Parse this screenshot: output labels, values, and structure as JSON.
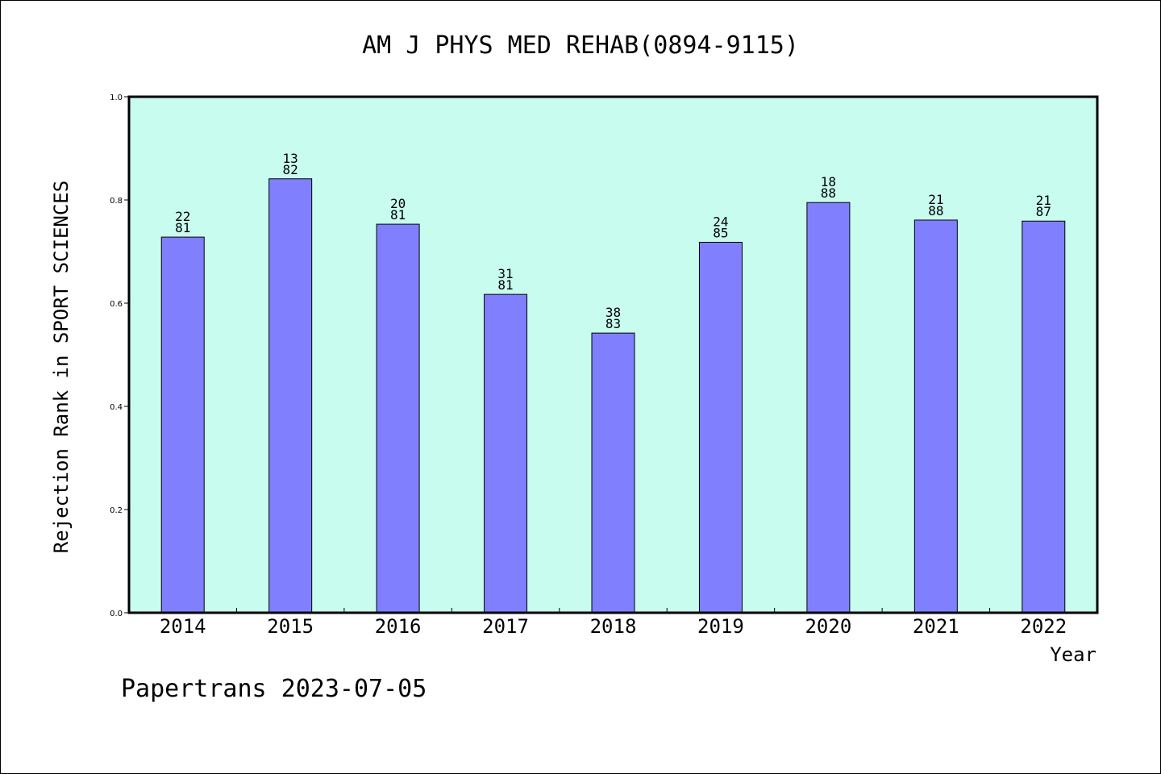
{
  "chart_data": {
    "type": "bar",
    "title": "AM J PHYS MED REHAB(0894-9115)",
    "xlabel": "Year",
    "ylabel": "Rejection Rank in SPORT SCIENCES",
    "categories": [
      "2014",
      "2015",
      "2016",
      "2017",
      "2018",
      "2019",
      "2020",
      "2021",
      "2022"
    ],
    "values": [
      0.728,
      0.841,
      0.753,
      0.617,
      0.542,
      0.718,
      0.795,
      0.761,
      0.759
    ],
    "rank": [
      "22",
      "13",
      "20",
      "31",
      "38",
      "24",
      "18",
      "21",
      "21"
    ],
    "total": [
      "81",
      "82",
      "81",
      "81",
      "83",
      "85",
      "88",
      "88",
      "87"
    ],
    "ylim": [
      0,
      1.0
    ],
    "yticks": [
      "0.0",
      "0.2",
      "0.4",
      "0.6",
      "0.8",
      "1.0"
    ],
    "grid": false,
    "colors": {
      "plot_bg": "#c8fcee",
      "bar": "#8080ff",
      "bar_edge": "#000000"
    }
  },
  "footer": "Papertrans 2023-07-05"
}
